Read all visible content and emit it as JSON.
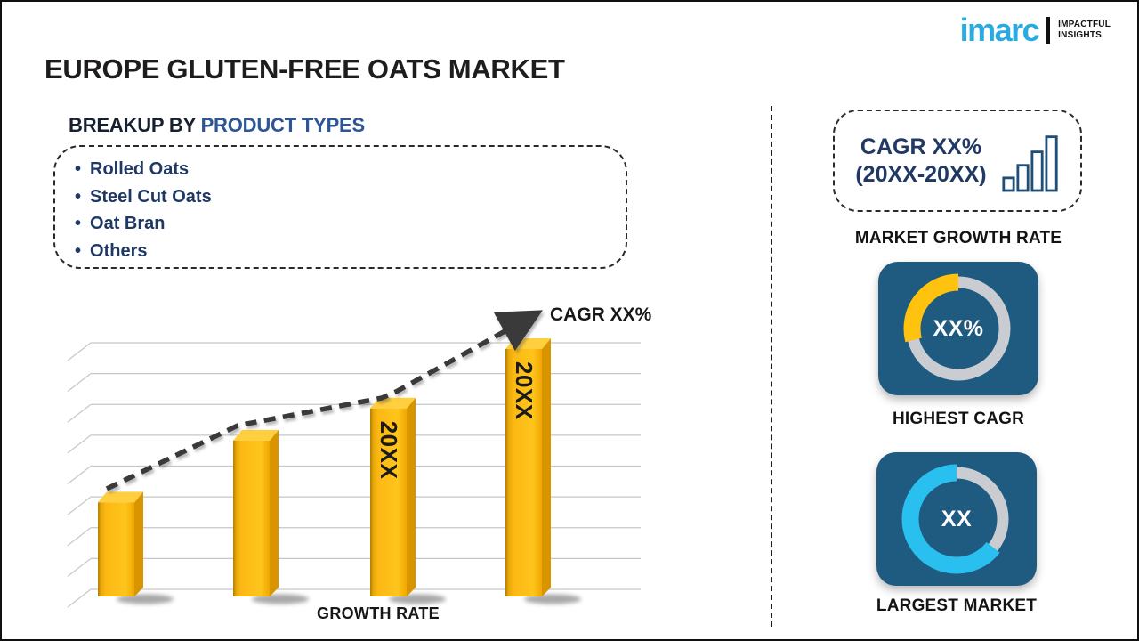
{
  "page": {
    "title": "EUROPE GLUTEN-FREE OATS MARKET"
  },
  "logo": {
    "brand": "imarc",
    "tagline_line1": "IMPACTFUL",
    "tagline_line2": "INSIGHTS",
    "brand_color": "#29ABE2"
  },
  "breakup": {
    "heading_prefix": "BREAKUP BY ",
    "heading_highlight": "PRODUCT TYPES",
    "items": [
      "Rolled Oats",
      "Steel Cut Oats",
      "Oat Bran",
      "Others"
    ]
  },
  "chart_data": [
    {
      "id": "growth_bar_chart",
      "type": "bar",
      "title": "",
      "xlabel": "GROWTH RATE",
      "ylabel": "",
      "categories": [
        "",
        "",
        "20XX",
        "20XX"
      ],
      "values": [
        38,
        63,
        76,
        100
      ],
      "ylim": [
        0,
        100
      ],
      "grid": true,
      "gridline_count": 9,
      "bar_color": "#FCB813",
      "note": "placeholder infographic; heights relative, y-axis unlabeled, only last two bars carry year labels",
      "trend": {
        "label": "CAGR XX%",
        "style": "dashed-arrow",
        "points": [
          [
            70,
            207
          ],
          [
            217,
            136
          ],
          [
            379,
            105
          ],
          [
            395,
            98
          ],
          [
            548,
            13
          ]
        ]
      }
    },
    {
      "id": "highest_cagr_donut",
      "type": "pie",
      "label": "XX%",
      "slices": [
        {
          "name": "highlight",
          "fraction": 0.29,
          "color": "#FFC20E"
        },
        {
          "name": "remainder",
          "fraction": 0.71,
          "color": "#C9CDD2"
        }
      ]
    },
    {
      "id": "largest_market_donut",
      "type": "pie",
      "label": "XX",
      "slices": [
        {
          "name": "highlight",
          "fraction": 0.645,
          "color": "#29BFEF"
        },
        {
          "name": "remainder",
          "fraction": 0.355,
          "color": "#C9CDD2"
        }
      ]
    }
  ],
  "right_panel": {
    "growth_box": {
      "line1": "CAGR XX%",
      "line2": "(20XX-20XX)"
    },
    "growth_caption": "MARKET GROWTH RATE",
    "highest_cagr_caption": "HIGHEST CAGR",
    "largest_market_caption": "LARGEST MARKET"
  },
  "theme": {
    "navy_text": "#1F3864",
    "heading_blue": "#2C5697",
    "card_blue": "#1F5A80",
    "bar_yellow": "#FCB813",
    "gauge_yellow": "#FFC20E",
    "gauge_cyan": "#29BFEF",
    "gauge_gray": "#C9CDD2"
  }
}
